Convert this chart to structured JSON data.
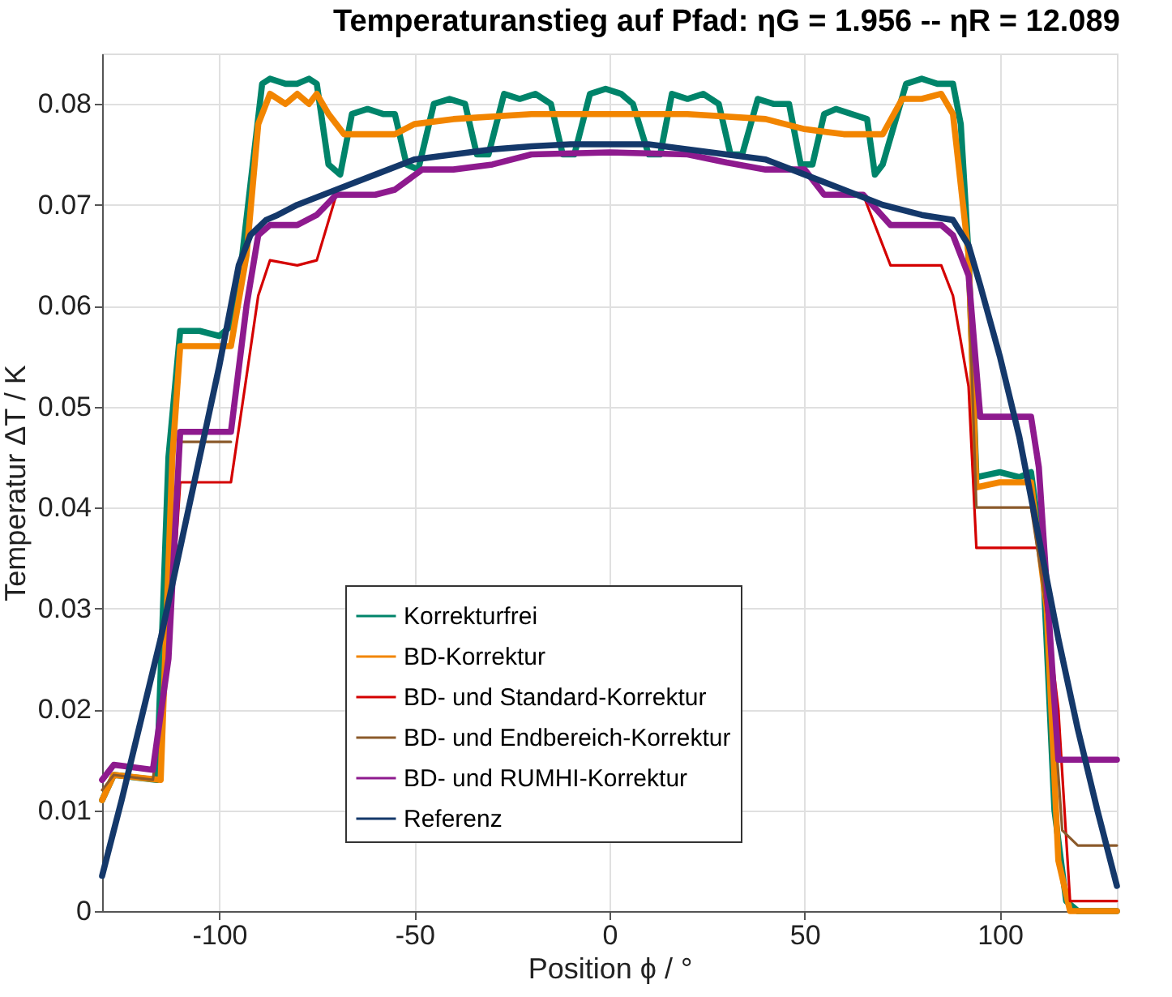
{
  "chart_data": {
    "type": "line",
    "title": "Temperaturanstieg auf Pfad: ηG = 1.956  --  ηR = 12.089",
    "xlabel": "Position ϕ /  °",
    "ylabel": "Temperatur ΔT / K",
    "xlim": [
      -130,
      130
    ],
    "xticks": [
      -100,
      -50,
      0,
      50,
      100
    ],
    "ylim": [
      0,
      0.085
    ],
    "yticks": [
      0,
      0.01,
      0.02,
      0.03,
      0.04,
      0.05,
      0.06,
      0.07,
      0.08
    ],
    "grid": true,
    "legend": "bottom",
    "line_style": "solid",
    "marker": "none",
    "series": [
      {
        "name": "Korrekturfrei",
        "color": "#00846a",
        "x": [
          -130,
          -127,
          -116,
          -113,
          -110,
          -105,
          -100,
          -97,
          -95,
          -92,
          -89,
          -87,
          -83,
          -80,
          -77,
          -75,
          -72,
          -69,
          -66,
          -62,
          -58,
          -55,
          -52,
          -49,
          -45,
          -41,
          -37,
          -34,
          -31,
          -27,
          -23,
          -19,
          -15,
          -12,
          -9,
          -5,
          -1,
          3,
          6,
          10,
          13,
          16,
          20,
          24,
          28,
          31,
          34,
          38,
          42,
          46,
          49,
          52,
          55,
          58,
          62,
          66,
          68,
          70,
          73,
          76,
          80,
          84,
          88,
          90,
          92,
          94,
          100,
          105,
          108,
          111,
          114,
          117,
          120,
          125,
          130
        ],
        "values": [
          0.011,
          0.0135,
          0.013,
          0.045,
          0.0575,
          0.0575,
          0.057,
          0.058,
          0.062,
          0.072,
          0.082,
          0.0825,
          0.082,
          0.082,
          0.0825,
          0.082,
          0.074,
          0.073,
          0.079,
          0.0795,
          0.079,
          0.079,
          0.074,
          0.0735,
          0.08,
          0.0805,
          0.08,
          0.075,
          0.075,
          0.081,
          0.0805,
          0.081,
          0.08,
          0.075,
          0.075,
          0.081,
          0.0815,
          0.081,
          0.08,
          0.075,
          0.075,
          0.081,
          0.0805,
          0.081,
          0.08,
          0.075,
          0.075,
          0.0805,
          0.08,
          0.08,
          0.074,
          0.074,
          0.079,
          0.0795,
          0.079,
          0.0785,
          0.073,
          0.074,
          0.078,
          0.082,
          0.0825,
          0.082,
          0.082,
          0.078,
          0.065,
          0.043,
          0.0435,
          0.043,
          0.0435,
          0.035,
          0.01,
          0.001,
          0,
          0,
          0
        ]
      },
      {
        "name": "BD-Korrektur",
        "color": "#f28500",
        "x": [
          -130,
          -127,
          -115,
          -112,
          -110,
          -97,
          -93,
          -90,
          -87,
          -83,
          -80,
          -77,
          -75,
          -72,
          -68,
          -60,
          -55,
          -50,
          -40,
          -20,
          0,
          20,
          40,
          50,
          60,
          70,
          75,
          80,
          85,
          88,
          92,
          94,
          100,
          108,
          112,
          115,
          118,
          122,
          130
        ],
        "values": [
          0.011,
          0.0135,
          0.013,
          0.045,
          0.056,
          0.056,
          0.065,
          0.078,
          0.081,
          0.08,
          0.081,
          0.08,
          0.081,
          0.079,
          0.077,
          0.077,
          0.077,
          0.078,
          0.0785,
          0.079,
          0.079,
          0.079,
          0.0785,
          0.0775,
          0.077,
          0.077,
          0.0805,
          0.0805,
          0.081,
          0.079,
          0.065,
          0.042,
          0.0425,
          0.0425,
          0.03,
          0.005,
          0,
          0,
          0
        ]
      },
      {
        "name": "BD- und Standard-Korrektur",
        "color": "#d40000",
        "x": [
          -130,
          -127,
          -117,
          -113,
          -110,
          -97,
          -93,
          -90,
          -87,
          -80,
          -75,
          -70,
          -60,
          -55,
          -48,
          -40,
          -30,
          -20,
          0,
          20,
          30,
          40,
          50,
          55,
          65,
          72,
          85,
          88,
          92,
          94,
          108,
          110,
          115,
          118,
          130
        ],
        "values": [
          0.013,
          0.0145,
          0.014,
          0.025,
          0.0425,
          0.0425,
          0.053,
          0.061,
          0.0645,
          0.064,
          0.0645,
          0.071,
          null,
          null,
          null,
          null,
          null,
          null,
          null,
          null,
          null,
          null,
          null,
          null,
          0.071,
          0.064,
          0.064,
          0.061,
          0.052,
          0.036,
          0.036,
          0.036,
          0.02,
          0.001,
          0.001
        ]
      },
      {
        "name": "BD- und Endbereich-Korrektur",
        "color": "#8b5a2b",
        "x": [
          -130,
          -127,
          -117,
          -113,
          -110,
          -97,
          -93,
          -90,
          -87,
          -80,
          -75,
          -70,
          -60,
          -55,
          -48,
          -40,
          -30,
          -20,
          0,
          20,
          30,
          40,
          50,
          55,
          65,
          72,
          85,
          88,
          92,
          94,
          108,
          112,
          116,
          120,
          130
        ],
        "values": [
          0.012,
          0.0135,
          0.013,
          0.025,
          0.0465,
          0.0465,
          null,
          null,
          null,
          null,
          null,
          null,
          null,
          null,
          null,
          null,
          null,
          null,
          null,
          null,
          null,
          null,
          null,
          null,
          null,
          null,
          null,
          null,
          0.063,
          0.04,
          0.04,
          0.03,
          0.008,
          0.0065,
          0.0065
        ]
      },
      {
        "name": "BD- und RUMHI-Korrektur",
        "color": "#8e1a8e",
        "x": [
          -130,
          -127,
          -117,
          -113,
          -110,
          -97,
          -93,
          -90,
          -87,
          -80,
          -75,
          -70,
          -60,
          -55,
          -48,
          -40,
          -30,
          -20,
          0,
          20,
          30,
          40,
          50,
          55,
          65,
          72,
          85,
          88,
          92,
          95,
          108,
          110,
          115,
          130
        ],
        "values": [
          0.013,
          0.0145,
          0.014,
          0.025,
          0.0475,
          0.0475,
          0.06,
          0.067,
          0.068,
          0.068,
          0.069,
          0.071,
          0.071,
          0.0715,
          0.0735,
          0.0735,
          0.074,
          0.075,
          0.0752,
          0.075,
          0.0742,
          0.0735,
          0.0735,
          0.071,
          0.071,
          0.068,
          0.068,
          0.067,
          0.063,
          0.049,
          0.049,
          0.044,
          0.015,
          0.015
        ]
      },
      {
        "name": "Referenz",
        "color": "#14386a",
        "x": [
          -130,
          -125,
          -120,
          -115,
          -110,
          -105,
          -100,
          -97,
          -95,
          -92,
          -88,
          -85,
          -80,
          -70,
          -60,
          -50,
          -40,
          -30,
          -20,
          -10,
          0,
          10,
          20,
          30,
          40,
          50,
          60,
          70,
          80,
          88,
          92,
          95,
          100,
          105,
          110,
          115,
          120,
          125,
          130
        ],
        "values": [
          0.0035,
          0.011,
          0.019,
          0.027,
          0.036,
          0.045,
          0.054,
          0.06,
          0.064,
          0.067,
          0.0685,
          0.069,
          0.07,
          0.0715,
          0.073,
          0.0745,
          0.075,
          0.0755,
          0.0758,
          0.076,
          0.076,
          0.076,
          0.0755,
          0.075,
          0.0745,
          0.073,
          0.0715,
          0.07,
          0.069,
          0.0685,
          0.066,
          0.062,
          0.055,
          0.047,
          0.037,
          0.027,
          0.018,
          0.01,
          0.0025
        ]
      }
    ]
  }
}
